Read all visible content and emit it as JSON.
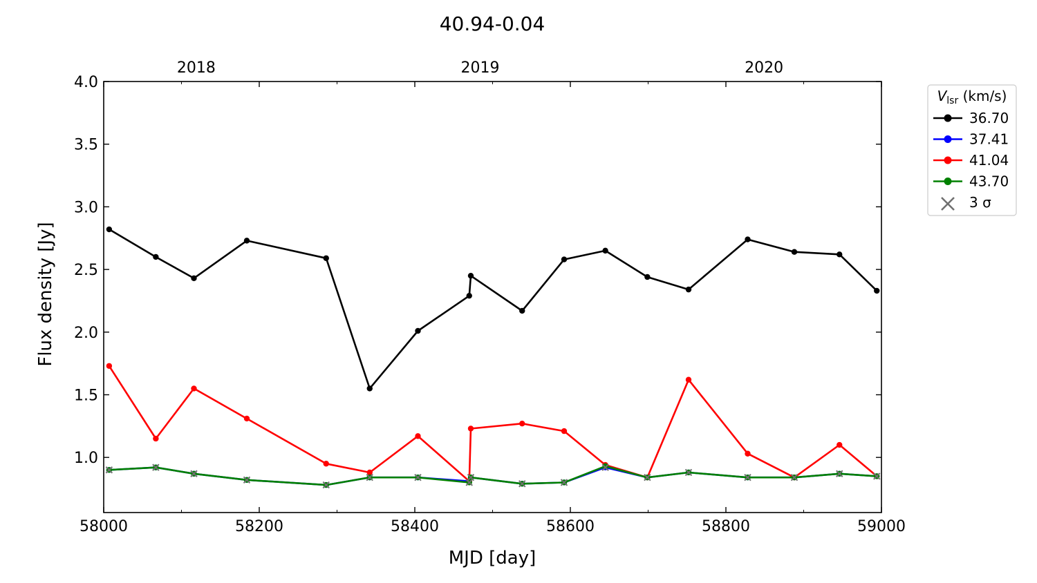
{
  "chart_data": {
    "type": "line",
    "title": "40.94-0.04",
    "xlabel": "MJD [day]",
    "ylabel": "Flux density [Jy]",
    "xlim": [
      58000,
      59000
    ],
    "ylim": [
      0.56,
      4.0
    ],
    "xticks": [
      58000,
      58200,
      58400,
      58600,
      58800,
      59000
    ],
    "yticks": [
      1.0,
      1.5,
      2.0,
      2.5,
      3.0,
      3.5,
      4.0
    ],
    "ytick_labels": [
      "1.0",
      "1.5",
      "2.0",
      "2.5",
      "3.0",
      "3.5",
      "4.0"
    ],
    "top_axis": {
      "ticks": [
        {
          "x": 58119,
          "label": "2018"
        },
        {
          "x": 58484,
          "label": "2019"
        },
        {
          "x": 58849,
          "label": "2020"
        }
      ]
    },
    "grid": false,
    "legend": {
      "title_main": "V",
      "title_sub": "lsr",
      "title_unit": "(km/s)",
      "placement": "right-outside-top",
      "entries": [
        {
          "label": "36.70",
          "color": "#000000"
        },
        {
          "label": "37.41",
          "color": "#0000ff"
        },
        {
          "label": "41.04",
          "color": "#ff0000"
        },
        {
          "label": "43.70",
          "color": "#008000"
        },
        {
          "label": "3 σ",
          "color": "#707070"
        }
      ]
    },
    "series": [
      {
        "name": "36.70",
        "color": "#000000",
        "x": [
          58007,
          58067,
          58116,
          58184,
          58286,
          58342,
          58404,
          58470,
          58472,
          58538,
          58592,
          58645,
          58699,
          58752,
          58828,
          58888,
          58946,
          58994
        ],
        "y": [
          2.82,
          2.6,
          2.43,
          2.73,
          2.59,
          1.55,
          2.01,
          2.29,
          2.45,
          2.17,
          2.58,
          2.65,
          2.44,
          2.34,
          2.74,
          2.64,
          2.62,
          2.33
        ]
      },
      {
        "name": "37.41",
        "color": "#0000ff",
        "x": [
          58007,
          58067,
          58116,
          58184,
          58286,
          58342,
          58404,
          58470,
          58472,
          58538,
          58592,
          58645,
          58699,
          58752,
          58828,
          58888,
          58946,
          58994
        ],
        "y": [
          0.9,
          0.92,
          0.87,
          0.82,
          0.78,
          0.84,
          0.84,
          0.81,
          0.84,
          0.79,
          0.8,
          0.92,
          0.84,
          0.88,
          0.84,
          0.84,
          0.87,
          0.85
        ]
      },
      {
        "name": "41.04",
        "color": "#ff0000",
        "x": [
          58007,
          58067,
          58116,
          58184,
          58286,
          58342,
          58404,
          58470,
          58472,
          58538,
          58592,
          58645,
          58699,
          58752,
          58828,
          58888,
          58946,
          58994
        ],
        "y": [
          1.73,
          1.15,
          1.55,
          1.31,
          0.95,
          0.88,
          1.17,
          0.81,
          1.23,
          1.27,
          1.21,
          0.94,
          0.84,
          1.62,
          1.03,
          0.84,
          1.1,
          0.85
        ]
      },
      {
        "name": "43.70",
        "color": "#008000",
        "x": [
          58007,
          58067,
          58116,
          58184,
          58286,
          58342,
          58404,
          58470,
          58472,
          58538,
          58592,
          58645,
          58699,
          58752,
          58828,
          58888,
          58946,
          58994
        ],
        "y": [
          0.9,
          0.92,
          0.87,
          0.82,
          0.78,
          0.84,
          0.84,
          0.8,
          0.84,
          0.79,
          0.8,
          0.93,
          0.84,
          0.88,
          0.84,
          0.84,
          0.87,
          0.85
        ]
      },
      {
        "name": "3 σ",
        "color": "#707070",
        "marker": "x",
        "x": [
          58007,
          58067,
          58116,
          58184,
          58286,
          58342,
          58404,
          58470,
          58472,
          58538,
          58592,
          58645,
          58699,
          58752,
          58828,
          58888,
          58946,
          58994
        ],
        "y": [
          0.9,
          0.92,
          0.87,
          0.82,
          0.78,
          0.84,
          0.84,
          0.8,
          0.84,
          0.79,
          0.8,
          0.92,
          0.84,
          0.88,
          0.84,
          0.84,
          0.87,
          0.85
        ]
      }
    ]
  }
}
